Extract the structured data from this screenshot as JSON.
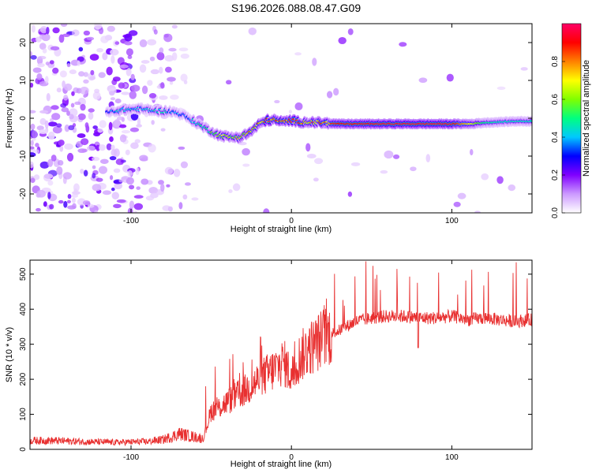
{
  "title": "S196.2026.088.08.47.G09",
  "chart_data": [
    {
      "type": "heatmap",
      "title": "S196.2026.088.08.47.G09",
      "xlabel": "Height of straight line (km)",
      "ylabel": "Frequency (Hz)",
      "xlim": [
        -163,
        150
      ],
      "ylim": [
        -25,
        25
      ],
      "xticks": [
        -100,
        0,
        100
      ],
      "xtick_labels": [
        "-100",
        "0",
        "100"
      ],
      "yticks": [
        -20,
        -10,
        0,
        10,
        20
      ],
      "ytick_labels": [
        "-20",
        "-10",
        "0",
        "10",
        "20"
      ],
      "colorbar": {
        "label": "Normalized spectral amplitude",
        "range": [
          0,
          1
        ],
        "ticks": [
          0.0,
          0.2,
          0.4,
          0.6,
          0.8
        ],
        "tick_labels": [
          "0.0",
          "0.2",
          "0.4",
          "0.6",
          "0.8"
        ],
        "colors": [
          "#ffffff",
          "#cc99ff",
          "#8000ff",
          "#0000ff",
          "#00c8ff",
          "#00ff80",
          "#80ff00",
          "#ffff00",
          "#ff8000",
          "#ff0000",
          "#ff0066"
        ]
      },
      "ridge": {
        "x": [
          -115,
          -105,
          -95,
          -85,
          -75,
          -68,
          -60,
          -52,
          -45,
          -38,
          -32,
          -25,
          -20,
          -15,
          -10,
          -5,
          0,
          5,
          10,
          20,
          30,
          60,
          100,
          112,
          120,
          130,
          140,
          150
        ],
        "y": [
          1.5,
          2.2,
          2.5,
          2.0,
          1.8,
          1.0,
          -1.0,
          -3.0,
          -4.5,
          -5.0,
          -5.0,
          -3.5,
          -1.5,
          -0.5,
          -0.5,
          -1.0,
          -0.5,
          -1.0,
          -1.0,
          -1.2,
          -1.5,
          -1.5,
          -1.5,
          -1.5,
          -1.2,
          -1.0,
          -0.8,
          -0.8
        ],
        "amplitude": [
          0.35,
          0.45,
          0.4,
          0.45,
          0.4,
          0.35,
          0.45,
          0.5,
          0.6,
          0.65,
          0.7,
          0.75,
          0.8,
          0.9,
          0.9,
          0.85,
          0.85,
          0.85,
          0.8,
          0.85,
          0.9,
          0.95,
          0.95,
          0.7,
          0.5,
          0.45,
          0.45,
          0.45
        ]
      }
    },
    {
      "type": "line",
      "xlabel": "Height of straight line (km)",
      "ylabel": "SNR (10 * v/v)",
      "xlim": [
        -163,
        150
      ],
      "ylim": [
        0,
        540
      ],
      "xticks": [
        -100,
        0,
        100
      ],
      "xtick_labels": [
        "-100",
        "0",
        "100"
      ],
      "yticks": [
        0,
        100,
        200,
        300,
        400,
        500
      ],
      "ytick_labels": [
        "0",
        "100",
        "200",
        "300",
        "400",
        "500"
      ],
      "series": [
        {
          "name": "SNR",
          "color": "#e83030",
          "x": [
            -163,
            -150,
            -130,
            -110,
            -90,
            -80,
            -75,
            -70,
            -65,
            -60,
            -55,
            -50,
            -45,
            -40,
            -35,
            -30,
            -25,
            -20,
            -15,
            -10,
            -5,
            0,
            5,
            10,
            15,
            20,
            25,
            30,
            40,
            50,
            60,
            70,
            80,
            90,
            100,
            110,
            120,
            130,
            140,
            150
          ],
          "values": [
            25,
            25,
            22,
            20,
            22,
            28,
            35,
            45,
            40,
            35,
            30,
            110,
            120,
            135,
            150,
            165,
            180,
            200,
            215,
            230,
            250,
            210,
            260,
            285,
            300,
            320,
            330,
            340,
            365,
            375,
            380,
            380,
            375,
            375,
            380,
            370,
            375,
            370,
            365,
            370
          ]
        }
      ]
    }
  ]
}
